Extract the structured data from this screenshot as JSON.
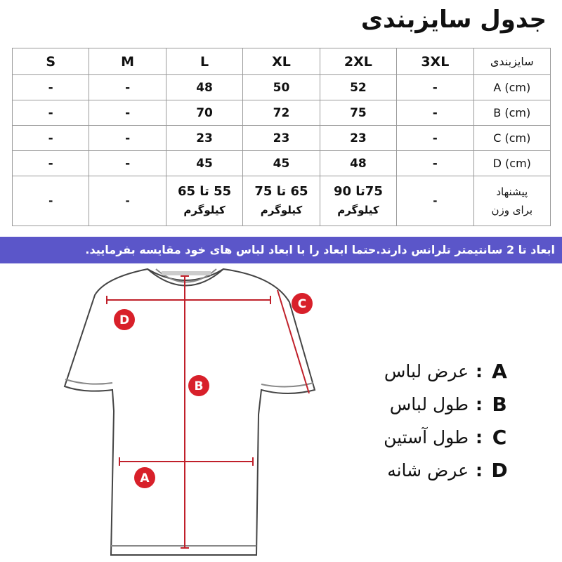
{
  "title": "جدول سایزبندی",
  "table": {
    "row_header": "سایزبندی",
    "sizes": [
      "3XL",
      "2XL",
      "XL",
      "L",
      "M",
      "S"
    ],
    "rows": [
      {
        "label": "A (cm)",
        "values": [
          "-",
          "52",
          "50",
          "48",
          "-",
          "-"
        ]
      },
      {
        "label": "B (cm)",
        "values": [
          "-",
          "75",
          "72",
          "70",
          "-",
          "-"
        ]
      },
      {
        "label": "C (cm)",
        "values": [
          "-",
          "23",
          "23",
          "23",
          "-",
          "-"
        ]
      },
      {
        "label": "D (cm)",
        "values": [
          "-",
          "48",
          "45",
          "45",
          "-",
          "-"
        ]
      }
    ],
    "weight": {
      "label_1": "پیشنهاد",
      "label_2": "برای وزن",
      "values": [
        {
          "range": "-",
          "unit": ""
        },
        {
          "range": "75تا 90",
          "unit": "کیلوگرم"
        },
        {
          "range": "65 تا 75",
          "unit": "کیلوگرم"
        },
        {
          "range": "55 تا 65",
          "unit": "کیلوگرم"
        },
        {
          "range": "-",
          "unit": ""
        },
        {
          "range": "-",
          "unit": ""
        }
      ]
    }
  },
  "banner": "ابعاد تا 2 سانتیمتر تلرانس دارند.حتما ابعاد را با ابعاد لباس های خود مقایسه بفرمایید.",
  "banner_color": "#5b56c9",
  "marker_color": "#d8202a",
  "markers": {
    "a": "A",
    "b": "B",
    "c": "C",
    "d": "D"
  },
  "legend": [
    {
      "key": "A",
      "text": "عرض لباس"
    },
    {
      "key": "B",
      "text": "طول لباس"
    },
    {
      "key": "C",
      "text": "طول آستین"
    },
    {
      "key": "D",
      "text": "عرض شانه"
    }
  ]
}
